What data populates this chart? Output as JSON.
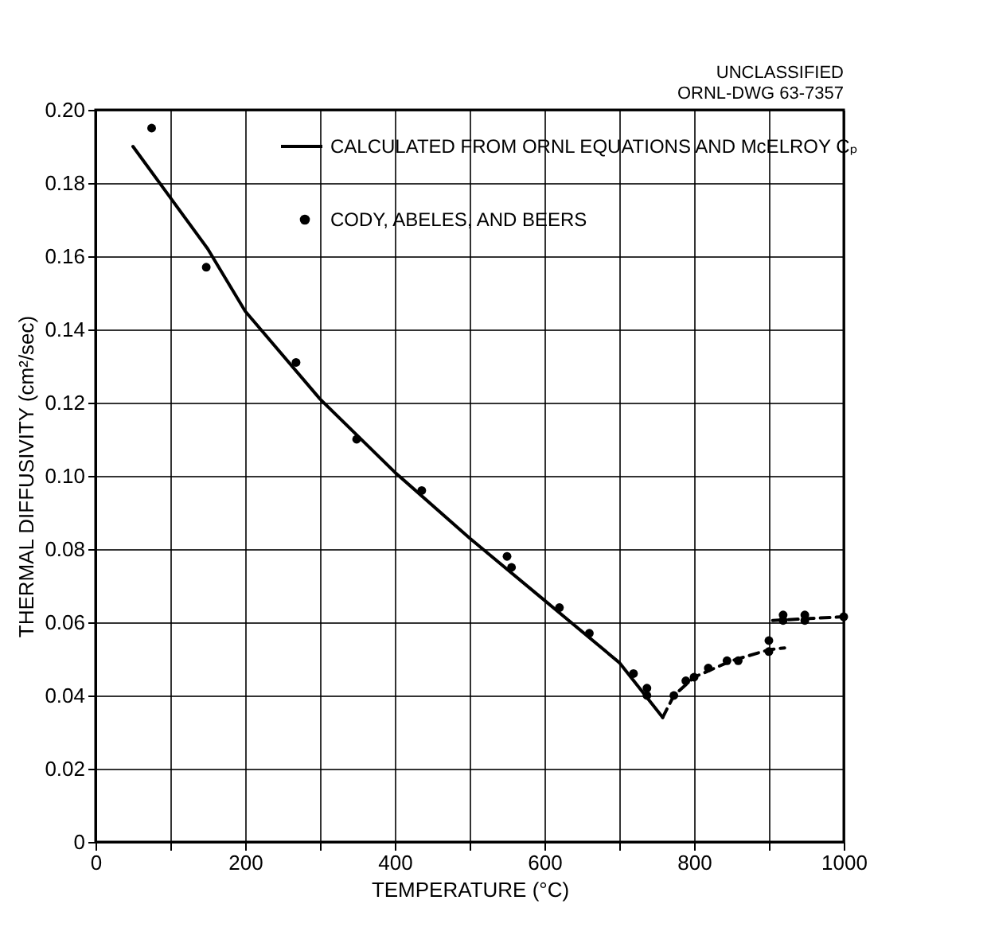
{
  "chart_data": {
    "type": "line",
    "xlabel": "TEMPERATURE (°C)",
    "ylabel": "THERMAL DIFFUSIVITY (cm²/sec)",
    "annotations": [
      "UNCLASSIFIED",
      "ORNL-DWG 63-7357"
    ],
    "xlim": [
      0,
      1000
    ],
    "ylim": [
      0,
      0.2
    ],
    "xticks": [
      0,
      {
        "value": 100,
        "label": null
      },
      200,
      {
        "value": 300,
        "label": null
      },
      400,
      {
        "value": 500,
        "label": null
      },
      600,
      {
        "value": 700,
        "label": null
      },
      800,
      {
        "value": 900,
        "label": null
      },
      1000
    ],
    "yticks": [
      0,
      {
        "value": 0.02,
        "label": "0.02"
      },
      {
        "value": 0.04,
        "label": "0.04"
      },
      {
        "value": 0.06,
        "label": "0.06"
      },
      {
        "value": 0.08,
        "label": "0.08"
      },
      {
        "value": 0.1,
        "label": "0.10"
      },
      {
        "value": 0.12,
        "label": "0.12"
      },
      {
        "value": 0.14,
        "label": "0.14"
      },
      {
        "value": 0.16,
        "label": "0.16"
      },
      {
        "value": 0.18,
        "label": "0.18"
      },
      {
        "value": 0.2,
        "label": "0.20"
      }
    ],
    "grid": true,
    "legend": "top right",
    "series": [
      {
        "name": "CALCULATED FROM ORNL EQUATIONS AND McELROY Cₚ",
        "line_style": "solid",
        "color": "#000000",
        "x": [
          50,
          100,
          150,
          200,
          300,
          400,
          500,
          600,
          700,
          758
        ],
        "values": [
          0.19,
          0.176,
          0.162,
          0.145,
          0.121,
          0.101,
          0.083,
          0.066,
          0.049,
          0.034
        ]
      },
      {
        "line_style": "dashed",
        "color": "#000000",
        "x": [
          758,
          773,
          800,
          850,
          900,
          921
        ],
        "values": [
          0.034,
          0.04,
          0.045,
          0.0495,
          0.0525,
          0.053
        ]
      },
      {
        "line_style": "dashed",
        "color": "#000000",
        "x": [
          905,
          1000
        ],
        "values": [
          0.0605,
          0.0615
        ]
      },
      {
        "name": "CODY, ABELES, AND BEERS",
        "type": "scatter",
        "marker": "circle",
        "color": "#000000",
        "x": [
          75,
          148,
          268,
          349,
          436,
          550,
          556,
          620,
          660,
          719,
          737,
          737,
          773,
          789,
          800,
          819,
          844,
          859,
          900,
          900,
          919,
          919,
          948,
          948,
          1000
        ],
        "values": [
          0.195,
          0.157,
          0.131,
          0.11,
          0.096,
          0.078,
          0.075,
          0.064,
          0.057,
          0.046,
          0.042,
          0.04,
          0.04,
          0.044,
          0.045,
          0.0475,
          0.0495,
          0.0495,
          0.052,
          0.055,
          0.062,
          0.0605,
          0.062,
          0.0605,
          0.0615
        ]
      }
    ]
  }
}
